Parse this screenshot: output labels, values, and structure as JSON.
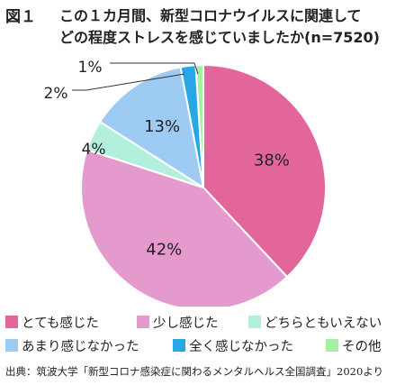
{
  "figure_label": "図１",
  "title_lines": [
    "この１カ月間、新型コロナウイルスに関連して",
    "どの程度ストレスを感じていましたか(n=7520)"
  ],
  "chart_data": {
    "type": "pie",
    "title": "この１カ月間、新型コロナウイルスに関連してどの程度ストレスを感じていましたか(n=7520)",
    "n": 7520,
    "slices": [
      {
        "label": "とても感じた",
        "value": 38,
        "display": "38%",
        "color": "#e3669b"
      },
      {
        "label": "少し感じた",
        "value": 42,
        "display": "42%",
        "color": "#e59acd"
      },
      {
        "label": "どちらともいえない",
        "value": 4,
        "display": "4%",
        "color": "#b2efdc"
      },
      {
        "label": "あまり感じなかった",
        "value": 13,
        "display": "13%",
        "color": "#9ecbf3"
      },
      {
        "label": "全く感じなかった",
        "value": 2,
        "display": "2%",
        "color": "#29a6e6"
      },
      {
        "label": "その他",
        "value": 1,
        "display": "1%",
        "color": "#a6f0a3"
      }
    ],
    "legend_placement": "bottom"
  },
  "source": "出典：筑波大学「新型コロナ感染症に関わるメンタルヘルス全国調査」2020より"
}
